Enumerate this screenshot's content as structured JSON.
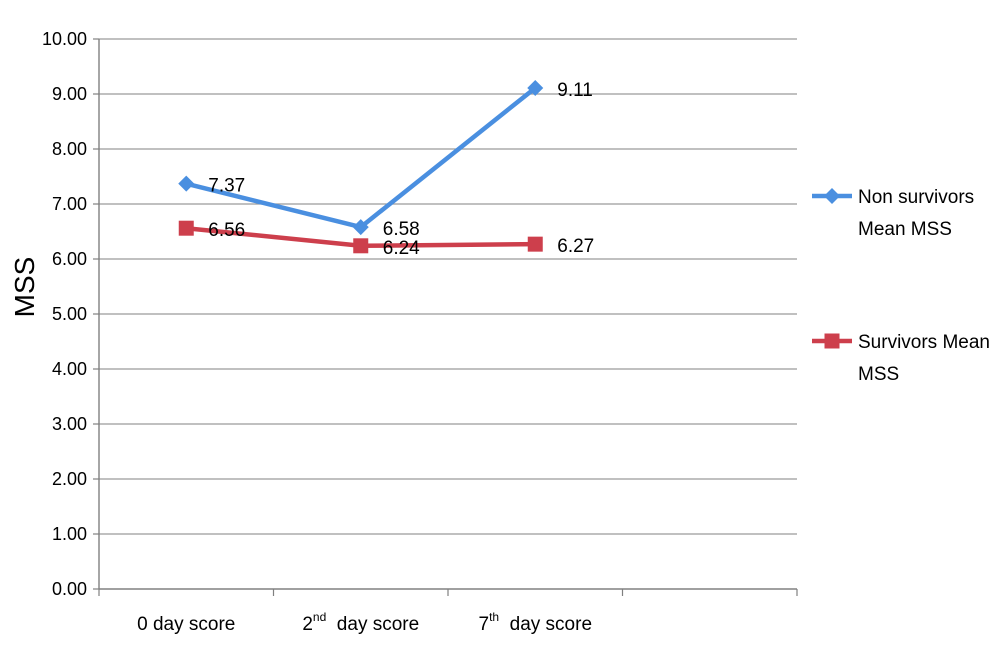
{
  "chart_data": {
    "type": "line",
    "ylabel": "MSS",
    "xlabel": "",
    "title": "",
    "ylim": [
      0,
      10
    ],
    "ytick_labels": [
      "0.00",
      "1.00",
      "2.00",
      "3.00",
      "4.00",
      "5.00",
      "6.00",
      "7.00",
      "8.00",
      "9.00",
      "10.00"
    ],
    "categories": [
      {
        "base": "0 day score",
        "sup": "",
        "rest": ""
      },
      {
        "base": "2",
        "sup": "nd",
        "rest": "  day score"
      },
      {
        "base": "7",
        "sup": "th",
        "rest": "  day score"
      }
    ],
    "series": [
      {
        "name_lines": [
          "Non survivors",
          "Mean MSS"
        ],
        "color": "#4a8fe0",
        "marker": "diamond",
        "values": [
          7.37,
          6.58,
          9.11
        ],
        "labels": [
          "7.37",
          "6.58",
          "9.11"
        ]
      },
      {
        "name_lines": [
          "Survivors Mean",
          "MSS"
        ],
        "color": "#cd3f4c",
        "marker": "square",
        "values": [
          6.56,
          6.24,
          6.27
        ],
        "labels": [
          "6.56",
          "6.24",
          "6.27"
        ]
      }
    ],
    "grid": true,
    "legend_position": "right"
  }
}
